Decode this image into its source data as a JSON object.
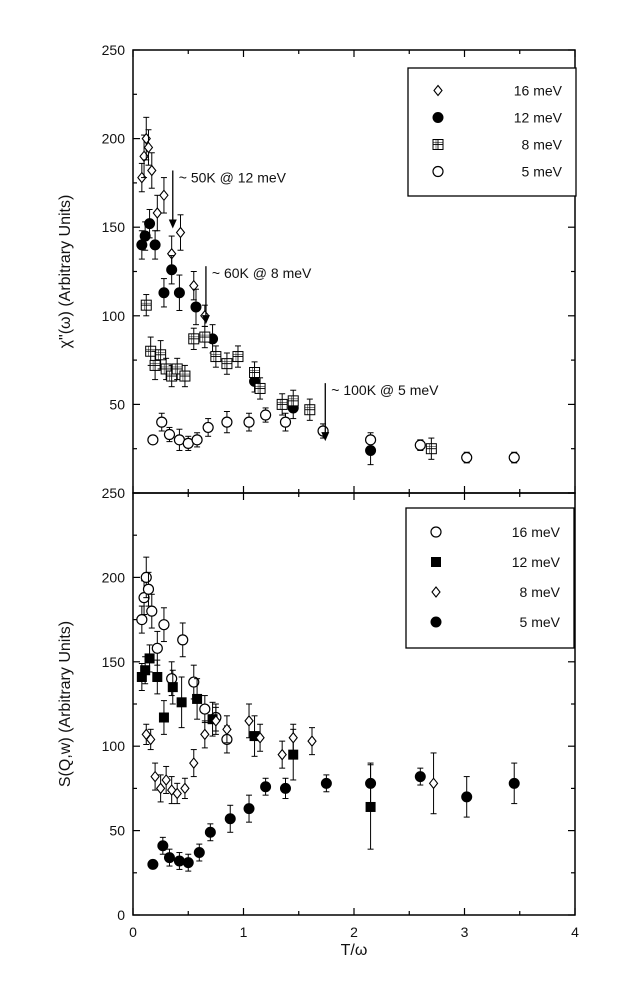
{
  "chart_data": [
    {
      "type": "scatter",
      "title": "",
      "xlabel": "",
      "ylabel": "χ\"(ω)  (Arbitrary  Units)",
      "xlim": [
        0,
        4
      ],
      "ylim": [
        0,
        250
      ],
      "x_ticks": [],
      "y_ticks": [
        "50",
        "100",
        "150",
        "200",
        "250"
      ],
      "legend_position": "top-right",
      "series": [
        {
          "name": "16  meV",
          "marker": "diamond-open",
          "x": [
            0.08,
            0.1,
            0.12,
            0.14,
            0.17,
            0.22,
            0.28,
            0.35,
            0.43,
            0.55,
            0.65
          ],
          "y": [
            178,
            190,
            200,
            195,
            182,
            158,
            168,
            135,
            147,
            117,
            100
          ],
          "err": [
            8,
            12,
            12,
            10,
            10,
            10,
            10,
            10,
            10,
            8,
            6
          ]
        },
        {
          "name": "12  meV",
          "marker": "circle-filled",
          "x": [
            0.08,
            0.11,
            0.15,
            0.2,
            0.28,
            0.35,
            0.42,
            0.57,
            0.72,
            1.1,
            1.45,
            2.15
          ],
          "y": [
            140,
            145,
            152,
            140,
            113,
            126,
            113,
            105,
            87,
            63,
            48,
            24
          ],
          "err": [
            8,
            8,
            8,
            8,
            8,
            8,
            10,
            10,
            8,
            6,
            6,
            8
          ]
        },
        {
          "name": "8  meV",
          "marker": "square-hatched",
          "x": [
            0.12,
            0.16,
            0.2,
            0.25,
            0.3,
            0.35,
            0.4,
            0.47,
            0.55,
            0.65,
            0.75,
            0.85,
            0.95,
            1.1,
            1.15,
            1.35,
            1.45,
            1.6,
            2.7
          ],
          "y": [
            106,
            80,
            72,
            78,
            70,
            66,
            70,
            66,
            87,
            88,
            77,
            73,
            77,
            68,
            59,
            50,
            52,
            47,
            25
          ],
          "err": [
            6,
            8,
            8,
            8,
            6,
            6,
            6,
            6,
            6,
            6,
            6,
            6,
            6,
            6,
            6,
            6,
            6,
            6,
            6
          ]
        },
        {
          "name": "5  meV",
          "marker": "circle-open",
          "x": [
            0.18,
            0.26,
            0.33,
            0.42,
            0.5,
            0.58,
            0.68,
            0.85,
            1.05,
            1.2,
            1.38,
            1.72,
            2.15,
            2.6,
            3.02,
            3.45
          ],
          "y": [
            30,
            40,
            33,
            30,
            28,
            30,
            37,
            40,
            40,
            44,
            40,
            35,
            30,
            27,
            20,
            20
          ],
          "err": [
            0,
            5,
            4,
            6,
            4,
            4,
            5,
            6,
            5,
            4,
            5,
            4,
            4,
            3,
            3,
            3
          ]
        }
      ],
      "annotations": [
        {
          "text": "~ 50K @ 12 meV",
          "x": 0.36,
          "y": 182
        },
        {
          "text": "~ 60K @ 8 meV",
          "x": 0.66,
          "y": 128
        },
        {
          "text": "~ 100K @ 5 meV",
          "x": 1.74,
          "y": 62
        }
      ]
    },
    {
      "type": "scatter",
      "title": "",
      "xlabel": "T/ω",
      "ylabel": "S(Q,w)  (Arbitrary  Units)",
      "xlim": [
        0,
        4
      ],
      "ylim": [
        0,
        250
      ],
      "x_ticks": [
        "0",
        "1",
        "2",
        "3",
        "4"
      ],
      "y_ticks": [
        "0",
        "50",
        "100",
        "150",
        "200",
        "250"
      ],
      "legend_position": "top-right",
      "series": [
        {
          "name": "16  meV",
          "marker": "circle-open",
          "x": [
            0.08,
            0.1,
            0.12,
            0.14,
            0.17,
            0.22,
            0.28,
            0.35,
            0.45,
            0.55,
            0.65,
            0.75,
            0.85
          ],
          "y": [
            175,
            188,
            200,
            193,
            180,
            158,
            172,
            140,
            163,
            138,
            122,
            117,
            104
          ],
          "err": [
            8,
            10,
            12,
            10,
            10,
            10,
            10,
            10,
            10,
            10,
            8,
            8,
            8
          ]
        },
        {
          "name": "12  meV",
          "marker": "square-filled",
          "x": [
            0.08,
            0.11,
            0.15,
            0.22,
            0.28,
            0.36,
            0.44,
            0.58,
            0.72,
            1.1,
            1.45,
            2.15
          ],
          "y": [
            141,
            145,
            152,
            141,
            117,
            135,
            126,
            128,
            116,
            106,
            95,
            64
          ],
          "err": [
            8,
            8,
            8,
            10,
            10,
            10,
            15,
            12,
            10,
            12,
            15,
            25
          ]
        },
        {
          "name": "8  meV",
          "marker": "diamond-open",
          "x": [
            0.12,
            0.16,
            0.2,
            0.25,
            0.3,
            0.35,
            0.4,
            0.47,
            0.55,
            0.65,
            0.75,
            0.85,
            1.05,
            1.15,
            1.35,
            1.45,
            1.62,
            2.72
          ],
          "y": [
            107,
            104,
            82,
            75,
            80,
            74,
            72,
            75,
            90,
            107,
            115,
            110,
            115,
            105,
            95,
            105,
            103,
            78
          ],
          "err": [
            6,
            6,
            8,
            8,
            8,
            8,
            6,
            6,
            8,
            8,
            8,
            8,
            10,
            8,
            8,
            8,
            8,
            18
          ]
        },
        {
          "name": "5  meV",
          "marker": "circle-filled",
          "x": [
            0.18,
            0.27,
            0.33,
            0.42,
            0.5,
            0.6,
            0.7,
            0.88,
            1.05,
            1.2,
            1.38,
            1.75,
            2.15,
            2.6,
            3.02,
            3.45
          ],
          "y": [
            30,
            41,
            34,
            32,
            31,
            37,
            49,
            57,
            63,
            76,
            75,
            78,
            78,
            82,
            70,
            78
          ],
          "err": [
            0,
            5,
            5,
            5,
            5,
            5,
            5,
            8,
            8,
            5,
            6,
            5,
            12,
            5,
            12,
            12
          ]
        }
      ]
    }
  ]
}
